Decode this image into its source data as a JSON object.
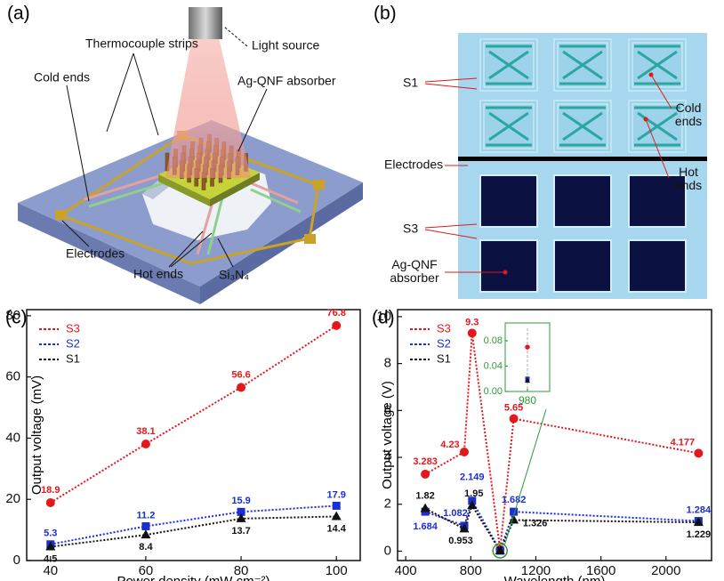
{
  "panels": {
    "a": {
      "label": "(a)",
      "annotations": [
        "Thermocouple strips",
        "Light source",
        "Cold ends",
        "Ag-QNF absorber",
        "Electrodes",
        "Hot ends",
        "Si₃N₄"
      ]
    },
    "b": {
      "label": "(b)",
      "annotations": [
        "S1",
        "Cold ends",
        "Hot ends",
        "Electrodes",
        "S3",
        "Ag-QNF absorber"
      ]
    },
    "c": {
      "label": "(c)"
    },
    "d": {
      "label": "(d)"
    }
  },
  "chart_data": [
    {
      "type": "line",
      "xlabel": "Power density (mW cm⁻²)",
      "ylabel": "Output voltage (mV)",
      "x": [
        40,
        60,
        80,
        100
      ],
      "xlim": [
        35,
        105
      ],
      "xticks": [
        40,
        60,
        80,
        100
      ],
      "ylim": [
        0,
        82
      ],
      "yticks": [
        0,
        20,
        40,
        60,
        80
      ],
      "legend": "upper left",
      "series": [
        {
          "name": "S3",
          "color": "#e3171c",
          "marker": "circle",
          "values": [
            18.9,
            38.1,
            56.6,
            76.8
          ]
        },
        {
          "name": "S2",
          "color": "#1b2fd1",
          "marker": "square",
          "values": [
            5.3,
            11.2,
            15.9,
            17.9
          ]
        },
        {
          "name": "S1",
          "color": "#111111",
          "marker": "triangle",
          "values": [
            4.5,
            8.4,
            13.7,
            14.4
          ]
        }
      ]
    },
    {
      "type": "line",
      "xlabel": "Wavelength (nm)",
      "ylabel": "Output voltage (V)",
      "x": [
        520,
        760,
        808,
        980,
        1064,
        2200
      ],
      "xlim": [
        350,
        2280
      ],
      "xticks": [
        400,
        800,
        1200,
        1600,
        2000
      ],
      "ylim": [
        -0.4,
        10.3
      ],
      "yticks": [
        0,
        2,
        4,
        6,
        8,
        10
      ],
      "legend": "upper left",
      "series": [
        {
          "name": "S3",
          "color": "#e3171c",
          "marker": "circle",
          "values": [
            3.283,
            4.23,
            9.3,
            0.07,
            5.65,
            4.177
          ],
          "value_labels": [
            "3.283",
            "4.23",
            "9.3",
            null,
            "5.65",
            "4.177"
          ]
        },
        {
          "name": "S2",
          "color": "#1b2fd1",
          "marker": "square",
          "values": [
            1.684,
            1.082,
            2.149,
            0.02,
            1.682,
            1.284
          ],
          "value_labels": [
            "1.684",
            "1.082",
            "2.149",
            null,
            "1.682",
            "1.284"
          ]
        },
        {
          "name": "S1",
          "color": "#111111",
          "marker": "triangle",
          "values": [
            1.82,
            0.953,
            1.95,
            0.017,
            1.326,
            1.229
          ],
          "value_labels": [
            "1.82",
            "0.953",
            "1.95",
            null,
            "1.326",
            "1.229"
          ]
        }
      ]
    },
    {
      "type": "scatter",
      "axis_color": "#2e9b3a",
      "x": [
        980
      ],
      "xlim": [
        975,
        985
      ],
      "xticks": [
        980
      ],
      "ylim": [
        0,
        0.108
      ],
      "yticks": [
        {
          "value": 0,
          "label": "0.00"
        },
        {
          "value": 0.04,
          "label": "0.04"
        },
        {
          "value": 0.08,
          "label": "0.08"
        }
      ],
      "series": [
        {
          "color": "#e3171c",
          "marker": "circle",
          "values": [
            0.07
          ]
        },
        {
          "color": "#1b2fd1",
          "marker": "square",
          "values": [
            0.02
          ]
        },
        {
          "color": "#111111",
          "marker": "triangle",
          "values": [
            0.017
          ]
        }
      ]
    }
  ]
}
